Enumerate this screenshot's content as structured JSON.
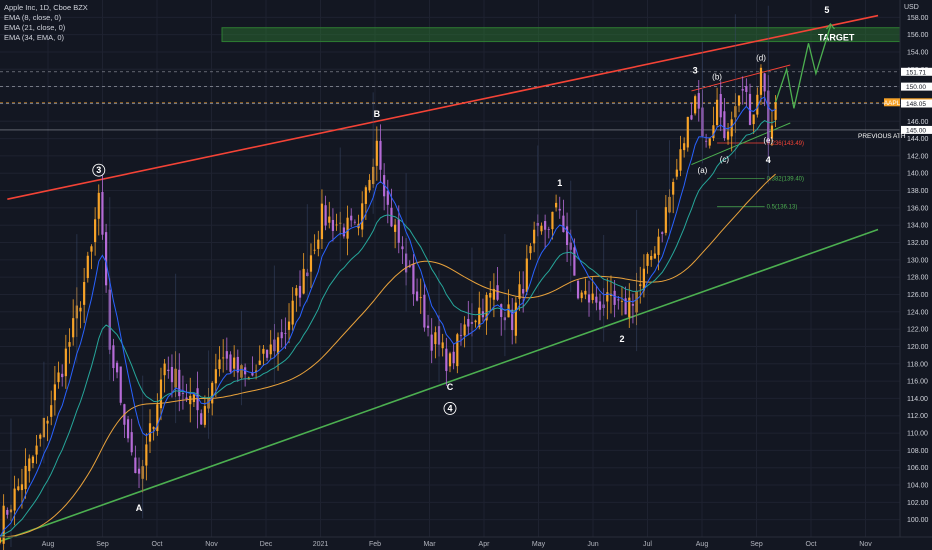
{
  "legend": {
    "title": "Apple Inc, 1D, Cboe BZX",
    "ema1": "EMA (8, close, 0)",
    "ema2": "EMA (21, close, 0)",
    "ema3": "EMA (34, EMA, 0)"
  },
  "currency": "USD",
  "colors": {
    "background": "#131722",
    "grid": "#1e2230",
    "up_candle": "#f7a328",
    "down_candle": "#b56bd6",
    "ema8": "#2962ff",
    "ema21": "#26a69a",
    "ema34": "#e9a23b",
    "resistance": "#f44336",
    "support": "#4caf50",
    "target_zone": "#2e7d32",
    "projection": "#4caf50"
  },
  "chart_data": {
    "type": "candlestick",
    "title": "Apple Inc, 1D, Cboe BZX",
    "ylim": [
      98,
      160
    ],
    "y_ticks": [
      100,
      102,
      104,
      106,
      108,
      110,
      112,
      114,
      116,
      118,
      120,
      122,
      124,
      126,
      128,
      130,
      132,
      134,
      136,
      138,
      140,
      142,
      144,
      146,
      148,
      150,
      152,
      154,
      156,
      158
    ],
    "x_ticks": [
      "Aug",
      "Sep",
      "Oct",
      "Nov",
      "Dec",
      "2021",
      "Feb",
      "Mar",
      "Apr",
      "May",
      "Jun",
      "Jul",
      "Aug",
      "Sep",
      "Oct",
      "Nov"
    ],
    "anchors": [
      {
        "t": 0,
        "p": 99.5
      },
      {
        "t": 10,
        "p": 108
      },
      {
        "t": 20,
        "p": 122
      },
      {
        "t": 25,
        "p": 131
      },
      {
        "t": 27,
        "p": 137.5
      },
      {
        "t": 30,
        "p": 120
      },
      {
        "t": 35,
        "p": 110
      },
      {
        "t": 38,
        "p": 104
      },
      {
        "t": 45,
        "p": 118
      },
      {
        "t": 55,
        "p": 112
      },
      {
        "t": 60,
        "p": 119
      },
      {
        "t": 68,
        "p": 116
      },
      {
        "t": 78,
        "p": 122
      },
      {
        "t": 83,
        "p": 128
      },
      {
        "t": 88,
        "p": 135
      },
      {
        "t": 98,
        "p": 133
      },
      {
        "t": 103,
        "p": 144.5
      },
      {
        "t": 106,
        "p": 136
      },
      {
        "t": 112,
        "p": 128
      },
      {
        "t": 118,
        "p": 121
      },
      {
        "t": 123,
        "p": 118
      },
      {
        "t": 128,
        "p": 123
      },
      {
        "t": 135,
        "p": 126
      },
      {
        "t": 140,
        "p": 123
      },
      {
        "t": 146,
        "p": 132
      },
      {
        "t": 153,
        "p": 136
      },
      {
        "t": 158,
        "p": 126
      },
      {
        "t": 165,
        "p": 125
      },
      {
        "t": 170,
        "p": 124
      },
      {
        "t": 175,
        "p": 127
      },
      {
        "t": 181,
        "p": 134
      },
      {
        "t": 186,
        "p": 142
      },
      {
        "t": 190,
        "p": 149.5
      },
      {
        "t": 193,
        "p": 143
      },
      {
        "t": 196,
        "p": 148
      },
      {
        "t": 199,
        "p": 144
      },
      {
        "t": 203,
        "p": 149
      },
      {
        "t": 206,
        "p": 146
      },
      {
        "t": 208,
        "p": 151.5
      },
      {
        "t": 210,
        "p": 145
      },
      {
        "t": 212,
        "p": 148.2
      }
    ],
    "price_labels": [
      {
        "value": 151.71,
        "label": "151.71"
      },
      {
        "value": 150.0,
        "label": "150.00"
      },
      {
        "value": 148.19,
        "label": "148.19",
        "symbol": "AAPL"
      },
      {
        "value": 148.05,
        "label": "148.05"
      },
      {
        "value": 145.0,
        "label": "145.00",
        "annotation": "PREVIOUS ATH"
      }
    ],
    "fib_levels": [
      {
        "label": "0.236(143.49)",
        "value": 143.49,
        "color": "#f44336"
      },
      {
        "label": "0.382(139.40)",
        "value": 139.4,
        "color": "#4caf50"
      },
      {
        "label": "0.5(136.13)",
        "value": 136.13,
        "color": "#4caf50"
      }
    ],
    "target": {
      "label": "TARGET",
      "low": 155.2,
      "high": 156.8
    },
    "wave_labels": [
      {
        "text": "3",
        "t": 27,
        "p": 140,
        "circled": true
      },
      {
        "text": "A",
        "t": 38,
        "p": 101,
        "circled": false
      },
      {
        "text": "B",
        "t": 103,
        "p": 146.5,
        "circled": false
      },
      {
        "text": "C",
        "t": 123,
        "p": 115,
        "circled": false
      },
      {
        "text": "4",
        "t": 123,
        "p": 112.5,
        "circled": true
      },
      {
        "text": "1",
        "t": 153,
        "p": 138.5,
        "circled": false
      },
      {
        "text": "2",
        "t": 170,
        "p": 120.5,
        "circled": false
      },
      {
        "text": "3",
        "t": 190,
        "p": 151.5,
        "circled": false
      },
      {
        "text": "(a)",
        "t": 192,
        "p": 140,
        "circled": false
      },
      {
        "text": "(b)",
        "t": 196,
        "p": 150.8,
        "circled": false
      },
      {
        "text": "(c)",
        "t": 198,
        "p": 141.3,
        "circled": false
      },
      {
        "text": "(d)",
        "t": 208,
        "p": 153,
        "circled": false
      },
      {
        "text": "(e)",
        "t": 210,
        "p": 143.5,
        "circled": false
      },
      {
        "text": "4",
        "t": 210,
        "p": 141.2,
        "circled": false
      },
      {
        "text": "5",
        "t": 226,
        "p": 158.5,
        "circled": false
      }
    ],
    "projection": [
      {
        "t": 212,
        "p": 148.2
      },
      {
        "t": 215,
        "p": 152
      },
      {
        "t": 217,
        "p": 147.5
      },
      {
        "t": 221,
        "p": 155
      },
      {
        "t": 223,
        "p": 151.5
      },
      {
        "t": 227,
        "p": 157
      }
    ],
    "resistance_line": [
      {
        "t": 2,
        "p": 137
      },
      {
        "t": 240,
        "p": 158.2
      }
    ],
    "support_line": [
      {
        "t": 0,
        "p": 97.5
      },
      {
        "t": 240,
        "p": 133.5
      }
    ],
    "channel_upper": [
      {
        "t": 189,
        "p": 149.5
      },
      {
        "t": 216,
        "p": 152.5
      }
    ],
    "channel_lower": [
      {
        "t": 189,
        "p": 141
      },
      {
        "t": 216,
        "p": 145.8
      }
    ]
  }
}
